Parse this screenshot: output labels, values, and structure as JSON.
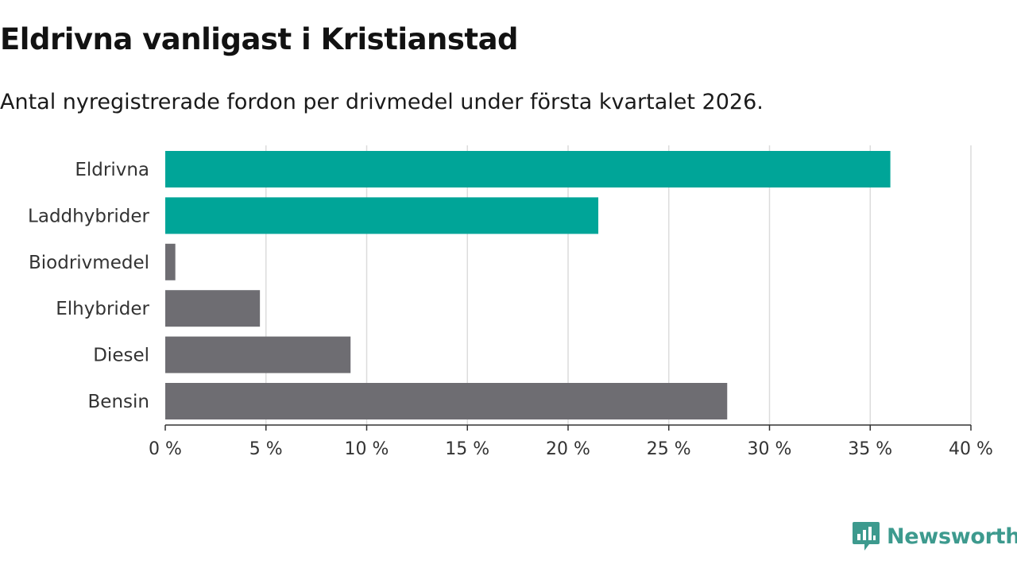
{
  "header": {
    "title": "Eldrivna vanligast i Kristianstad",
    "subtitle": "Antal nyregistrerade fordon per drivmedel under första kvartalet 2026."
  },
  "branding": {
    "name": "Newsworthy",
    "icon": "newsworthy-logo-icon",
    "color": "#3d9a8e"
  },
  "chart_data": {
    "type": "bar",
    "orientation": "horizontal",
    "title": "Eldrivna vanligast i Kristianstad",
    "subtitle": "Antal nyregistrerade fordon per drivmedel under första kvartalet 2026.",
    "xlabel": "",
    "ylabel": "",
    "categories": [
      "Eldrivna",
      "Laddhybrider",
      "Biodrivmedel",
      "Elhybrider",
      "Diesel",
      "Bensin"
    ],
    "values": [
      36.0,
      21.5,
      0.5,
      4.7,
      9.2,
      27.9
    ],
    "colors": [
      "#00a598",
      "#00a598",
      "#6e6d72",
      "#6e6d72",
      "#6e6d72",
      "#6e6d72"
    ],
    "xlim": [
      0,
      40
    ],
    "ticks": [
      0,
      5,
      10,
      15,
      20,
      25,
      30,
      35,
      40
    ],
    "tick_labels": [
      "0 %",
      "5 %",
      "10 %",
      "15 %",
      "20 %",
      "25 %",
      "30 %",
      "35 %",
      "40 %"
    ],
    "grid": true
  }
}
